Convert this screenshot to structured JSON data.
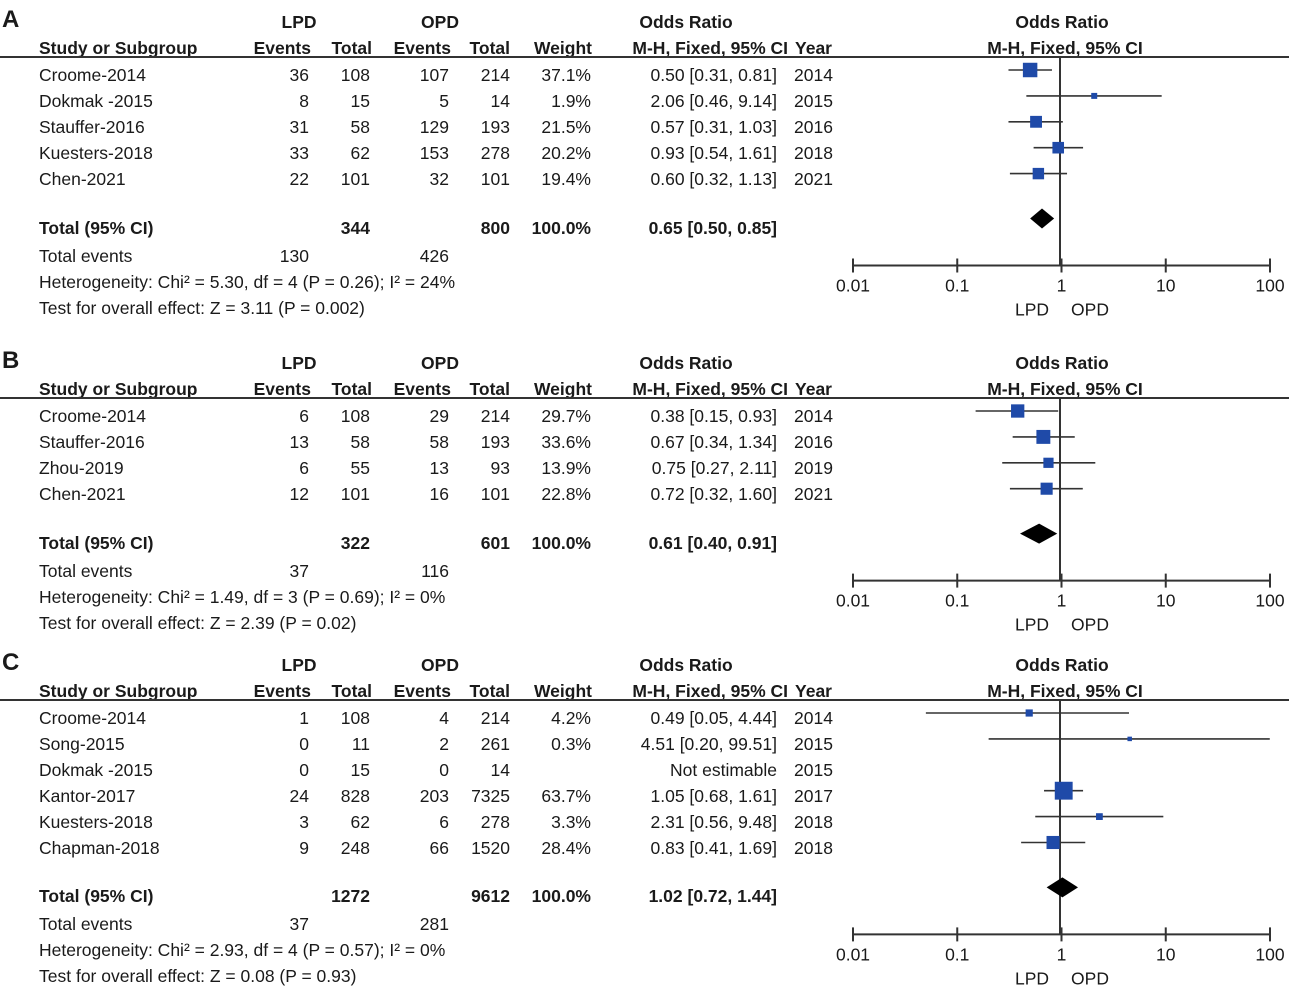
{
  "colors": {
    "marker": "#1f4aa8",
    "diamond": "#000000",
    "line": "#333333"
  },
  "headers": {
    "lpd": "LPD",
    "opd": "OPD",
    "odds_ratio": "Odds Ratio",
    "odds_ratio_plot": "Odds Ratio",
    "study": "Study or Subgroup",
    "events_lpd": "Events",
    "total_lpd": "Total",
    "events_opd": "Events",
    "total_opd": "Total",
    "weight": "Weight",
    "method": "M-H, Fixed, 95% CI",
    "year": "Year",
    "method_plot": "M-H, Fixed, 95% CI"
  },
  "panels": [
    {
      "letter": "A",
      "rows": [
        {
          "study": "Croome-2014",
          "e1": "36",
          "t1": "108",
          "e2": "107",
          "t2": "214",
          "w": "37.1%",
          "ci": "0.50 [0.31, 0.81]",
          "year": "2014"
        },
        {
          "study": "Dokmak -2015",
          "e1": "8",
          "t1": "15",
          "e2": "5",
          "t2": "14",
          "w": "1.9%",
          "ci": "2.06 [0.46, 9.14]",
          "year": "2015"
        },
        {
          "study": "Stauffer-2016",
          "e1": "31",
          "t1": "58",
          "e2": "129",
          "t2": "193",
          "w": "21.5%",
          "ci": "0.57 [0.31, 1.03]",
          "year": "2016"
        },
        {
          "study": "Kuesters-2018",
          "e1": "33",
          "t1": "62",
          "e2": "153",
          "t2": "278",
          "w": "20.2%",
          "ci": "0.93 [0.54, 1.61]",
          "year": "2018"
        },
        {
          "study": "Chen-2021",
          "e1": "22",
          "t1": "101",
          "e2": "32",
          "t2": "101",
          "w": "19.4%",
          "ci": "0.60 [0.32, 1.13]",
          "year": "2021"
        }
      ],
      "total": {
        "label": "Total (95% CI)",
        "t1": "344",
        "t2": "800",
        "w": "100.0%",
        "ci": "0.65 [0.50, 0.85]"
      },
      "events": {
        "label": "Total events",
        "e1": "130",
        "e2": "426"
      },
      "heterogeneity": "Heterogeneity: Chi² = 5.30, df = 4 (P = 0.26); I² = 24%",
      "overall": "Test for overall effect: Z = 3.11 (P = 0.002)",
      "axis": {
        "ticks": [
          "0.01",
          "0.1",
          "1",
          "10",
          "100"
        ],
        "favours_left": "LPD",
        "favours_right": "OPD"
      }
    },
    {
      "letter": "B",
      "rows": [
        {
          "study": "Croome-2014",
          "e1": "6",
          "t1": "108",
          "e2": "29",
          "t2": "214",
          "w": "29.7%",
          "ci": "0.38 [0.15, 0.93]",
          "year": "2014"
        },
        {
          "study": "Stauffer-2016",
          "e1": "13",
          "t1": "58",
          "e2": "58",
          "t2": "193",
          "w": "33.6%",
          "ci": "0.67 [0.34, 1.34]",
          "year": "2016"
        },
        {
          "study": "Zhou-2019",
          "e1": "6",
          "t1": "55",
          "e2": "13",
          "t2": "93",
          "w": "13.9%",
          "ci": "0.75 [0.27, 2.11]",
          "year": "2019"
        },
        {
          "study": "Chen-2021",
          "e1": "12",
          "t1": "101",
          "e2": "16",
          "t2": "101",
          "w": "22.8%",
          "ci": "0.72 [0.32, 1.60]",
          "year": "2021"
        }
      ],
      "total": {
        "label": "Total (95% CI)",
        "t1": "322",
        "t2": "601",
        "w": "100.0%",
        "ci": "0.61 [0.40, 0.91]"
      },
      "events": {
        "label": "Total events",
        "e1": "37",
        "e2": "116"
      },
      "heterogeneity": "Heterogeneity: Chi² = 1.49, df = 3 (P = 0.69); I² = 0%",
      "overall": "Test for overall effect: Z = 2.39 (P = 0.02)",
      "axis": {
        "ticks": [
          "0.01",
          "0.1",
          "1",
          "10",
          "100"
        ],
        "favours_left": "LPD",
        "favours_right": "OPD"
      }
    },
    {
      "letter": "C",
      "rows": [
        {
          "study": "Croome-2014",
          "e1": "1",
          "t1": "108",
          "e2": "4",
          "t2": "214",
          "w": "4.2%",
          "ci": "0.49 [0.05, 4.44]",
          "year": "2014"
        },
        {
          "study": "Song-2015",
          "e1": "0",
          "t1": "11",
          "e2": "2",
          "t2": "261",
          "w": "0.3%",
          "ci": "4.51 [0.20, 99.51]",
          "year": "2015"
        },
        {
          "study": "Dokmak -2015",
          "e1": "0",
          "t1": "15",
          "e2": "0",
          "t2": "14",
          "w": "",
          "ci": "Not estimable",
          "year": "2015"
        },
        {
          "study": "Kantor-2017",
          "e1": "24",
          "t1": "828",
          "e2": "203",
          "t2": "7325",
          "w": "63.7%",
          "ci": "1.05 [0.68, 1.61]",
          "year": "2017"
        },
        {
          "study": "Kuesters-2018",
          "e1": "3",
          "t1": "62",
          "e2": "6",
          "t2": "278",
          "w": "3.3%",
          "ci": "2.31 [0.56, 9.48]",
          "year": "2018"
        },
        {
          "study": "Chapman-2018",
          "e1": "9",
          "t1": "248",
          "e2": "66",
          "t2": "1520",
          "w": "28.4%",
          "ci": "0.83 [0.41, 1.69]",
          "year": "2018"
        }
      ],
      "total": {
        "label": "Total (95% CI)",
        "t1": "1272",
        "t2": "9612",
        "w": "100.0%",
        "ci": "1.02 [0.72, 1.44]"
      },
      "events": {
        "label": "Total events",
        "e1": "37",
        "e2": "281"
      },
      "heterogeneity": "Heterogeneity: Chi² = 2.93, df = 4 (P = 0.57); I² = 0%",
      "overall": "Test for overall effect: Z = 0.08 (P = 0.93)",
      "axis": {
        "ticks": [
          "0.01",
          "0.1",
          "1",
          "10",
          "100"
        ],
        "favours_left": "LPD",
        "favours_right": "OPD"
      }
    }
  ],
  "chart_data": [
    {
      "type": "forest",
      "title": "A",
      "xscale": "log",
      "xlim": [
        0.01,
        100
      ],
      "studies": [
        {
          "name": "Croome-2014",
          "or": 0.5,
          "lo": 0.31,
          "hi": 0.81,
          "weight": 37.1
        },
        {
          "name": "Dokmak -2015",
          "or": 2.06,
          "lo": 0.46,
          "hi": 9.14,
          "weight": 1.9
        },
        {
          "name": "Stauffer-2016",
          "or": 0.57,
          "lo": 0.31,
          "hi": 1.03,
          "weight": 21.5
        },
        {
          "name": "Kuesters-2018",
          "or": 0.93,
          "lo": 0.54,
          "hi": 1.61,
          "weight": 20.2
        },
        {
          "name": "Chen-2021",
          "or": 0.6,
          "lo": 0.32,
          "hi": 1.13,
          "weight": 19.4
        }
      ],
      "pooled": {
        "or": 0.65,
        "lo": 0.5,
        "hi": 0.85
      }
    },
    {
      "type": "forest",
      "title": "B",
      "xscale": "log",
      "xlim": [
        0.01,
        100
      ],
      "studies": [
        {
          "name": "Croome-2014",
          "or": 0.38,
          "lo": 0.15,
          "hi": 0.93,
          "weight": 29.7
        },
        {
          "name": "Stauffer-2016",
          "or": 0.67,
          "lo": 0.34,
          "hi": 1.34,
          "weight": 33.6
        },
        {
          "name": "Zhou-2019",
          "or": 0.75,
          "lo": 0.27,
          "hi": 2.11,
          "weight": 13.9
        },
        {
          "name": "Chen-2021",
          "or": 0.72,
          "lo": 0.32,
          "hi": 1.6,
          "weight": 22.8
        }
      ],
      "pooled": {
        "or": 0.61,
        "lo": 0.4,
        "hi": 0.91
      }
    },
    {
      "type": "forest",
      "title": "C",
      "xscale": "log",
      "xlim": [
        0.01,
        100
      ],
      "studies": [
        {
          "name": "Croome-2014",
          "or": 0.49,
          "lo": 0.05,
          "hi": 4.44,
          "weight": 4.2
        },
        {
          "name": "Song-2015",
          "or": 4.51,
          "lo": 0.2,
          "hi": 99.51,
          "weight": 0.3
        },
        {
          "name": "Dokmak -2015",
          "or": null,
          "lo": null,
          "hi": null,
          "weight": null
        },
        {
          "name": "Kantor-2017",
          "or": 1.05,
          "lo": 0.68,
          "hi": 1.61,
          "weight": 63.7
        },
        {
          "name": "Kuesters-2018",
          "or": 2.31,
          "lo": 0.56,
          "hi": 9.48,
          "weight": 3.3
        },
        {
          "name": "Chapman-2018",
          "or": 0.83,
          "lo": 0.41,
          "hi": 1.69,
          "weight": 28.4
        }
      ],
      "pooled": {
        "or": 1.02,
        "lo": 0.72,
        "hi": 1.44
      }
    }
  ]
}
